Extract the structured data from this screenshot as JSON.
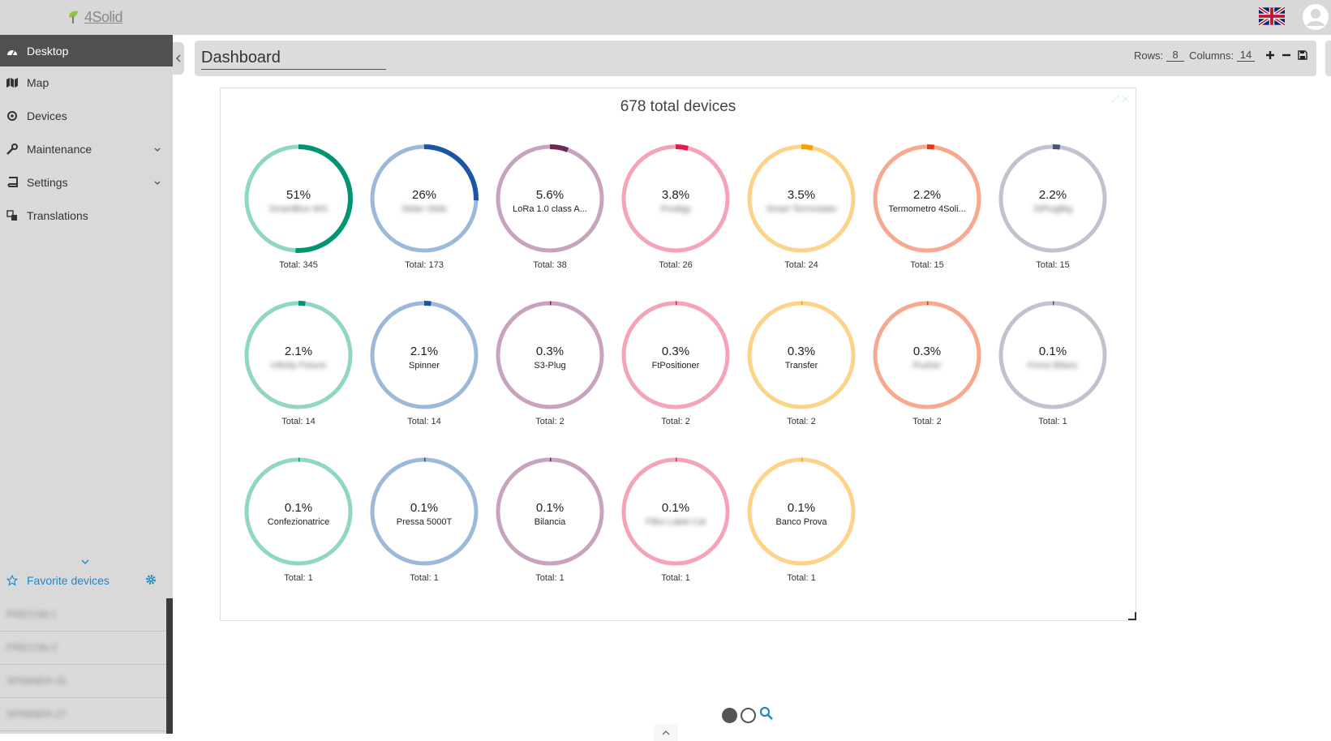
{
  "app": {
    "logo_text": "4Solid"
  },
  "sidebar": {
    "items": [
      {
        "label": "Desktop",
        "icon": "dashboard-icon",
        "active": true
      },
      {
        "label": "Map",
        "icon": "map-icon"
      },
      {
        "label": "Devices",
        "icon": "devices-icon"
      },
      {
        "label": "Maintenance",
        "icon": "wrench-icon",
        "expandable": true
      },
      {
        "label": "Settings",
        "icon": "book-icon",
        "expandable": true
      },
      {
        "label": "Translations",
        "icon": "translate-icon"
      }
    ],
    "favorites_label": "Favorite devices",
    "favorites": [
      "PRECON-1",
      "PRECON-2",
      "SPIWNER-25",
      "SPIWNER-27"
    ]
  },
  "dashboard": {
    "title": "Dashboard",
    "rows_label": "Rows:",
    "rows_value": "8",
    "columns_label": "Columns:",
    "columns_value": "14"
  },
  "widget": {
    "title": "678 total devices"
  },
  "chart_data": {
    "type": "pie",
    "title": "678 total devices",
    "colors": [
      "#009473",
      "#1a56a3",
      "#6b2b56",
      "#e8174b",
      "#f5a000",
      "#e8371a",
      "#4a5473"
    ],
    "light_colors": [
      "#8fd6c4",
      "#9cb9da",
      "#c8a3bd",
      "#f5a3b6",
      "#fdd38a",
      "#f9a890",
      "#c0c3cf"
    ],
    "slices": [
      {
        "percent": "51%",
        "name": "SmartiBox WG",
        "total": "Total: 345",
        "fraction": 0.5088,
        "hidden": true
      },
      {
        "percent": "26%",
        "name": "Slider Slide",
        "total": "Total: 173",
        "fraction": 0.2552,
        "hidden": true
      },
      {
        "percent": "5.6%",
        "name": "LoRa 1.0 class A...",
        "total": "Total: 38",
        "fraction": 0.056
      },
      {
        "percent": "3.8%",
        "name": "Prodigy",
        "total": "Total: 26",
        "fraction": 0.038,
        "hidden": true
      },
      {
        "percent": "3.5%",
        "name": "Smart Termostato",
        "total": "Total: 24",
        "fraction": 0.035,
        "hidden": true
      },
      {
        "percent": "2.2%",
        "name": "Termometro 4Soli...",
        "total": "Total: 15",
        "fraction": 0.022
      },
      {
        "percent": "2.2%",
        "name": "SiPlugBig",
        "total": "Total: 15",
        "fraction": 0.022,
        "hidden": true
      },
      {
        "percent": "2.1%",
        "name": "Infinity Fixture",
        "total": "Total: 14",
        "fraction": 0.021,
        "hidden": true
      },
      {
        "percent": "2.1%",
        "name": "Spinner",
        "total": "Total: 14",
        "fraction": 0.021
      },
      {
        "percent": "0.3%",
        "name": "S3-Plug",
        "total": "Total: 2",
        "fraction": 0.003
      },
      {
        "percent": "0.3%",
        "name": "FtPositioner",
        "total": "Total: 2",
        "fraction": 0.003
      },
      {
        "percent": "0.3%",
        "name": "Transfer",
        "total": "Total: 2",
        "fraction": 0.003
      },
      {
        "percent": "0.3%",
        "name": "Pusher",
        "total": "Total: 2",
        "fraction": 0.003,
        "hidden": true
      },
      {
        "percent": "0.1%",
        "name": "Forno Bilanc",
        "total": "Total: 1",
        "fraction": 0.0015,
        "hidden": true
      },
      {
        "percent": "0.1%",
        "name": "Confezionatrice",
        "total": "Total: 1",
        "fraction": 0.0015
      },
      {
        "percent": "0.1%",
        "name": "Pressa 5000T",
        "total": "Total: 1",
        "fraction": 0.0015
      },
      {
        "percent": "0.1%",
        "name": "Bilancia",
        "total": "Total: 1",
        "fraction": 0.0015
      },
      {
        "percent": "0.1%",
        "name": "Filtro Label Cal",
        "total": "Total: 1",
        "fraction": 0.0015,
        "hidden": true
      },
      {
        "percent": "0.1%",
        "name": "Banco Prova",
        "total": "Total: 1",
        "fraction": 0.0015
      }
    ]
  },
  "pager": {
    "pages": 2,
    "current": 1
  }
}
